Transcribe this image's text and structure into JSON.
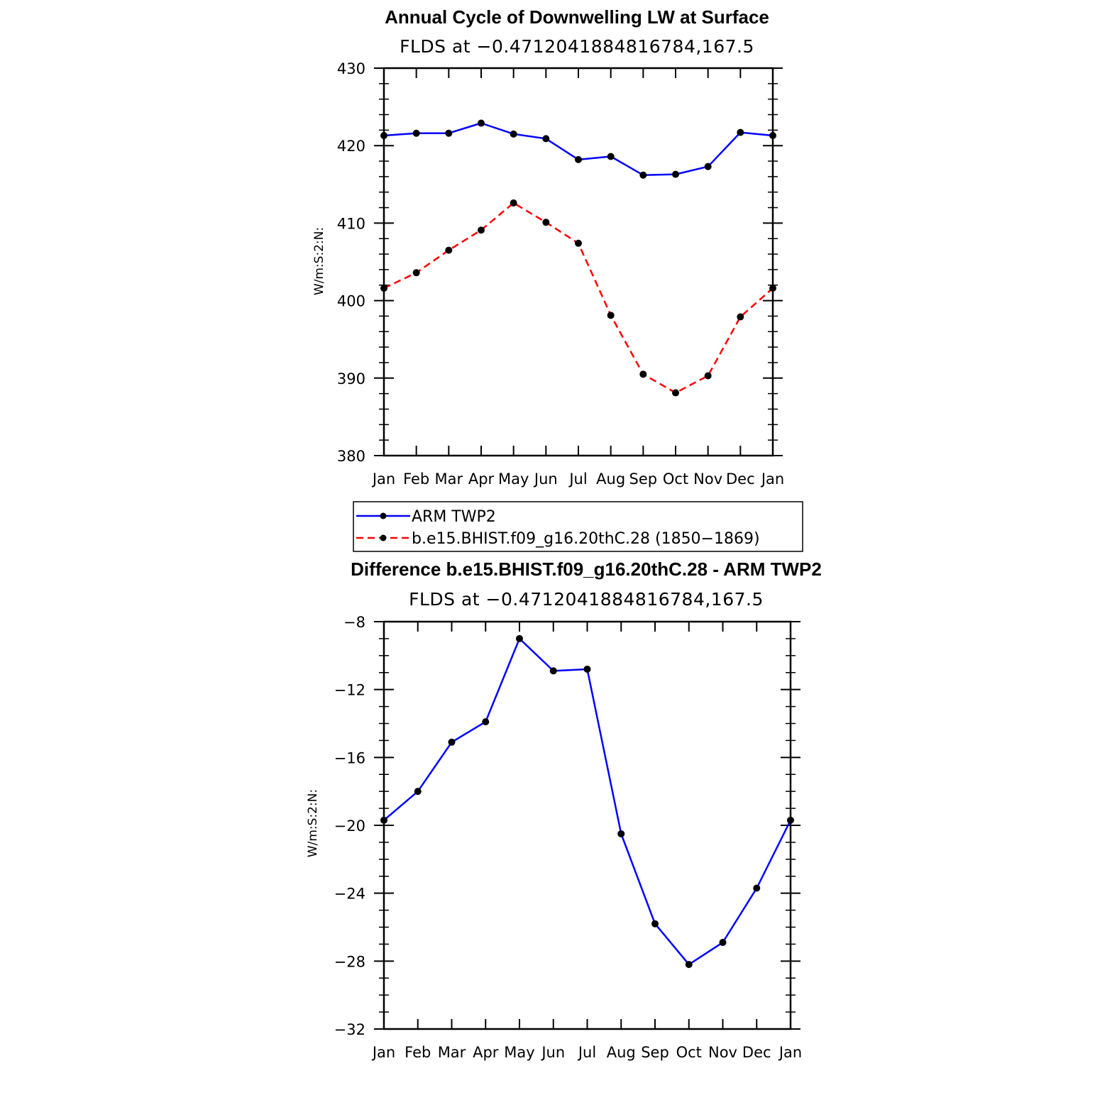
{
  "chart_data": [
    {
      "type": "line",
      "title": "Annual Cycle of Downwelling LW at Surface",
      "subtitle": "FLDS at −0.4712041884816784,167.5",
      "ylabel": "W/m:S:2:N:",
      "xlabel": "",
      "categories": [
        "Jan",
        "Feb",
        "Mar",
        "Apr",
        "May",
        "Jun",
        "Jul",
        "Aug",
        "Sep",
        "Oct",
        "Nov",
        "Dec",
        "Jan"
      ],
      "ylim": [
        380,
        430
      ],
      "yticks": [
        380,
        390,
        400,
        410,
        420,
        430
      ],
      "grid": false,
      "series": [
        {
          "name": "ARM TWP2",
          "color": "#0000ff",
          "dash": "solid",
          "values": [
            421.3,
            421.6,
            421.6,
            422.9,
            421.5,
            420.9,
            418.2,
            418.6,
            416.2,
            416.3,
            417.3,
            421.7,
            421.3
          ]
        },
        {
          "name": "b.e15.BHIST.f09_g16.20thC.28 (1850−1869)",
          "color": "#ff0000",
          "dash": "dashed",
          "values": [
            401.6,
            403.6,
            406.5,
            409.1,
            412.6,
            410.1,
            407.4,
            398.1,
            390.5,
            388.1,
            390.3,
            397.9,
            401.6
          ]
        }
      ],
      "legend_placement": "below"
    },
    {
      "type": "line",
      "title": "Difference b.e15.BHIST.f09_g16.20thC.28 - ARM TWP2",
      "subtitle": "FLDS at −0.4712041884816784,167.5",
      "ylabel": "W/m:S:2:N:",
      "xlabel": "",
      "categories": [
        "Jan",
        "Feb",
        "Mar",
        "Apr",
        "May",
        "Jun",
        "Jul",
        "Aug",
        "Sep",
        "Oct",
        "Nov",
        "Dec",
        "Jan"
      ],
      "ylim": [
        -32,
        -8
      ],
      "yticks": [
        -32,
        -28,
        -24,
        -20,
        -16,
        -12,
        -8
      ],
      "ytick_labels": [
        "−32",
        "−28",
        "−24",
        "−20",
        "−16",
        "−12",
        "−8"
      ],
      "grid": false,
      "series": [
        {
          "color": "#0000ff",
          "dash": "solid",
          "values": [
            -19.7,
            -18.0,
            -15.1,
            -13.9,
            -9.0,
            -10.9,
            -10.8,
            -20.5,
            -25.8,
            -28.2,
            -26.9,
            -23.7,
            -19.7
          ]
        }
      ]
    }
  ]
}
